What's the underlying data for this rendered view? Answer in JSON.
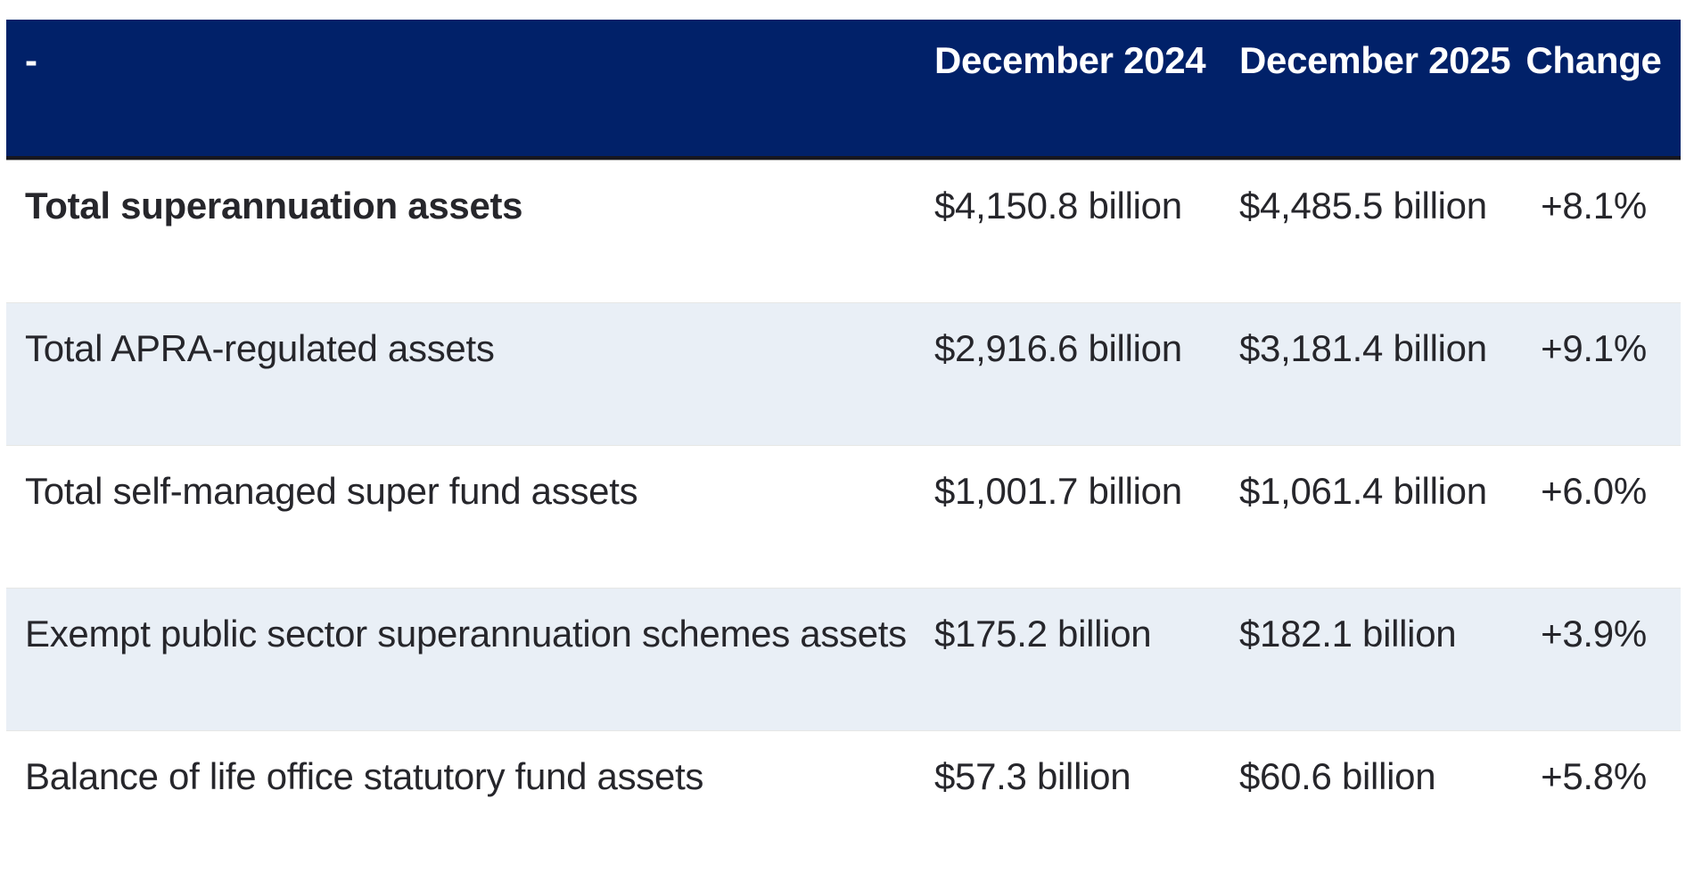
{
  "colors": {
    "header_background": "#012169",
    "header_text": "#ffffff",
    "alt_row_background": "#e9eff6",
    "body_text": "#26262b",
    "header_rule_dark": "#17171f",
    "header_rule_gray": "#a6a6a6"
  },
  "table": {
    "columns": [
      {
        "label": "-"
      },
      {
        "label": "December 2024"
      },
      {
        "label": "December 2025"
      },
      {
        "label": "Change"
      }
    ],
    "rows": [
      {
        "label": "Total superannuation assets",
        "dec2024": "$4,150.8 billion",
        "dec2025": "$4,485.5 billion",
        "change": "+8.1%"
      },
      {
        "label": "Total APRA-regulated assets",
        "dec2024": "$2,916.6 billion",
        "dec2025": "$3,181.4 billion",
        "change": "+9.1%"
      },
      {
        "label": "Total self-managed super fund assets",
        "dec2024": "$1,001.7 billion",
        "dec2025": "$1,061.4 billion",
        "change": "+6.0%"
      },
      {
        "label": "Exempt public sector superannuation schemes assets",
        "dec2024": "$175.2 billion",
        "dec2025": "$182.1 billion",
        "change": "+3.9%"
      },
      {
        "label": "Balance of life office statutory fund assets",
        "dec2024": "$57.3 billion",
        "dec2025": "$60.6 billion",
        "change": "+5.8%"
      }
    ]
  }
}
